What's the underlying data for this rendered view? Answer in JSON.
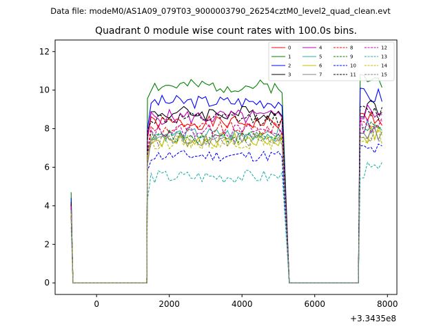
{
  "chart_data": {
    "type": "line",
    "suptitle": "Data file: modeM0/AS1A09_079T03_9000003790_26254cztM0_level2_quad_clean.evt",
    "title": "Quadrant 0 module wise count rates with 100.0s bins.",
    "xlabel": "",
    "ylabel": "",
    "x_offset_label": "+3.3435e8",
    "xlim": [
      -1140,
      8260
    ],
    "ylim": [
      -0.6,
      12.6
    ],
    "xticks": [
      0,
      2000,
      4000,
      6000,
      8000
    ],
    "xtick_labels": [
      "0",
      "2000",
      "4000",
      "6000",
      "8000"
    ],
    "yticks": [
      0,
      2,
      4,
      6,
      8,
      10,
      12
    ],
    "ytick_labels": [
      "0",
      "2",
      "4",
      "6",
      "8",
      "10",
      "12"
    ],
    "segments": [
      {
        "edge": -700,
        "start": -650,
        "end": 1380,
        "up": 1400
      },
      {
        "edge": 5100,
        "start": 5300,
        "end": 7200,
        "up": 7250
      },
      {
        "edge": 7880,
        "start": null,
        "end": null,
        "up": null
      }
    ],
    "series": [
      {
        "name": "0",
        "color": "#ff0000",
        "dash": "solid",
        "start": 4.0,
        "mean": 8.3,
        "amp": 0.35,
        "seed": 1
      },
      {
        "name": "1",
        "color": "#008000",
        "dash": "solid",
        "start": 4.7,
        "mean": 10.2,
        "amp": 0.35,
        "seed": 2
      },
      {
        "name": "2",
        "color": "#0000ff",
        "dash": "solid",
        "start": 4.4,
        "mean": 9.4,
        "amp": 0.35,
        "seed": 3
      },
      {
        "name": "3",
        "color": "#000000",
        "dash": "solid",
        "start": 4.2,
        "mean": 8.8,
        "amp": 0.4,
        "seed": 4
      },
      {
        "name": "4",
        "color": "#c000c0",
        "dash": "solid",
        "start": 4.1,
        "mean": 8.6,
        "amp": 0.4,
        "seed": 5
      },
      {
        "name": "5",
        "color": "#20b2aa",
        "dash": "solid",
        "start": 3.8,
        "mean": 7.7,
        "amp": 0.35,
        "seed": 6
      },
      {
        "name": "6",
        "color": "#bfbf00",
        "dash": "solid",
        "start": 3.6,
        "mean": 7.4,
        "amp": 0.4,
        "seed": 7
      },
      {
        "name": "7",
        "color": "#808080",
        "dash": "solid",
        "start": 3.5,
        "mean": 7.5,
        "amp": 0.4,
        "seed": 8
      },
      {
        "name": "8",
        "color": "#ff0000",
        "dash": "dashed",
        "start": 3.9,
        "mean": 8.0,
        "amp": 0.35,
        "seed": 9
      },
      {
        "name": "9",
        "color": "#008000",
        "dash": "dashed",
        "start": 3.7,
        "mean": 7.6,
        "amp": 0.35,
        "seed": 10
      },
      {
        "name": "10",
        "color": "#0000ff",
        "dash": "dashed",
        "start": 3.4,
        "mean": 6.6,
        "amp": 0.3,
        "seed": 11
      },
      {
        "name": "11",
        "color": "#000000",
        "dash": "dashed",
        "start": 4.1,
        "mean": 8.5,
        "amp": 0.35,
        "seed": 12
      },
      {
        "name": "12",
        "color": "#c000c0",
        "dash": "dashed",
        "start": 3.9,
        "mean": 7.9,
        "amp": 0.35,
        "seed": 13
      },
      {
        "name": "13",
        "color": "#20b2aa",
        "dash": "dashed",
        "start": 2.9,
        "mean": 5.5,
        "amp": 0.35,
        "seed": 14
      },
      {
        "name": "14",
        "color": "#bfbf00",
        "dash": "dashed",
        "start": 3.6,
        "mean": 7.3,
        "amp": 0.35,
        "seed": 15
      },
      {
        "name": "15",
        "color": "#808080",
        "dash": "dashed",
        "start": 3.7,
        "mean": 7.4,
        "amp": 0.35,
        "seed": 16
      }
    ]
  }
}
